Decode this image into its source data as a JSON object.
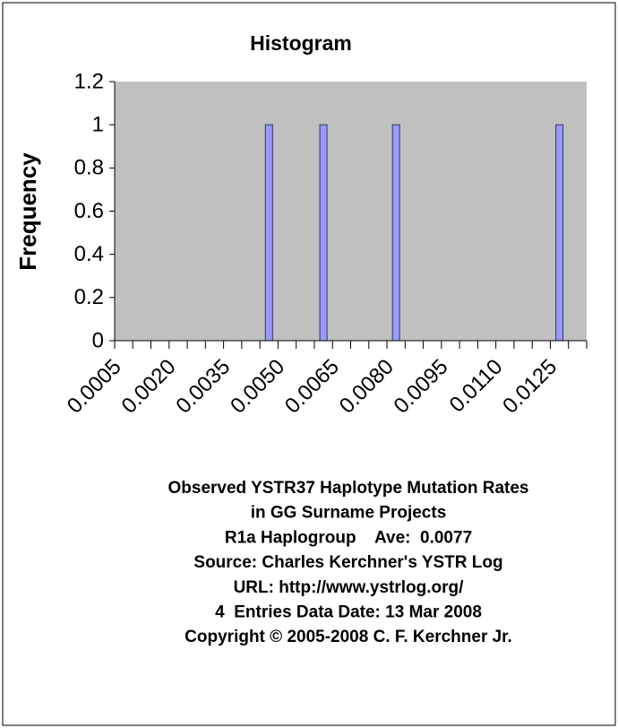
{
  "chart_data": {
    "type": "bar",
    "title": "Histogram",
    "y_label": "Frequency",
    "categories": [
      "0.0005",
      null,
      null,
      "0.0020",
      null,
      null,
      "0.0035",
      null,
      null,
      "0.0050",
      null,
      null,
      "0.0065",
      null,
      null,
      "0.0080",
      null,
      null,
      "0.0095",
      null,
      null,
      "0.0110",
      null,
      null,
      "0.0125",
      null
    ],
    "values": [
      0,
      0,
      0,
      0,
      0,
      0,
      0,
      0,
      1,
      0,
      0,
      1,
      0,
      0,
      0,
      1,
      0,
      0,
      0,
      0,
      0,
      0,
      0,
      0,
      1,
      0
    ],
    "color": "#9999ff",
    "ylim": [
      0,
      1.2
    ],
    "yticks": [
      0,
      0.2,
      0.4,
      0.6,
      0.8,
      1,
      1.2
    ],
    "notes": [
      "Observed YSTR37 Haplotype Mutation Rates",
      "in GG Surname Projects",
      "R1a Haplogroup    Ave:  0.0077",
      "Source: Charles Kerchner's YSTR Log",
      "URL: http://www.ystrlog.org/",
      "4  Entries Data Date: 13 Mar 2008",
      "Copyright © 2005-2008 C. F. Kerchner Jr."
    ]
  }
}
